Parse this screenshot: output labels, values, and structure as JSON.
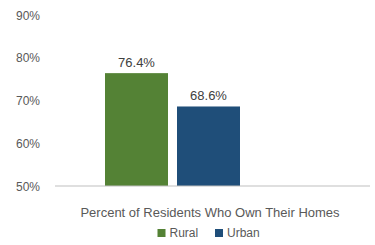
{
  "chart_data": {
    "type": "bar",
    "categories": [
      "Percent of Residents Who Own Their Homes"
    ],
    "series": [
      {
        "name": "Rural",
        "color": "#548235",
        "values": [
          76.4
        ],
        "value_labels": [
          "76.4%"
        ]
      },
      {
        "name": "Urban",
        "color": "#1f4e79",
        "values": [
          68.6
        ],
        "value_labels": [
          "68.6%"
        ]
      }
    ],
    "ylim": [
      50,
      90
    ],
    "yticks": [
      {
        "value": 50,
        "label": "50%"
      },
      {
        "value": 60,
        "label": "60%"
      },
      {
        "value": 70,
        "label": "70%"
      },
      {
        "value": 80,
        "label": "80%"
      },
      {
        "value": 90,
        "label": "90%"
      }
    ],
    "grid": false,
    "data_labels": true,
    "legend": "bottom"
  }
}
